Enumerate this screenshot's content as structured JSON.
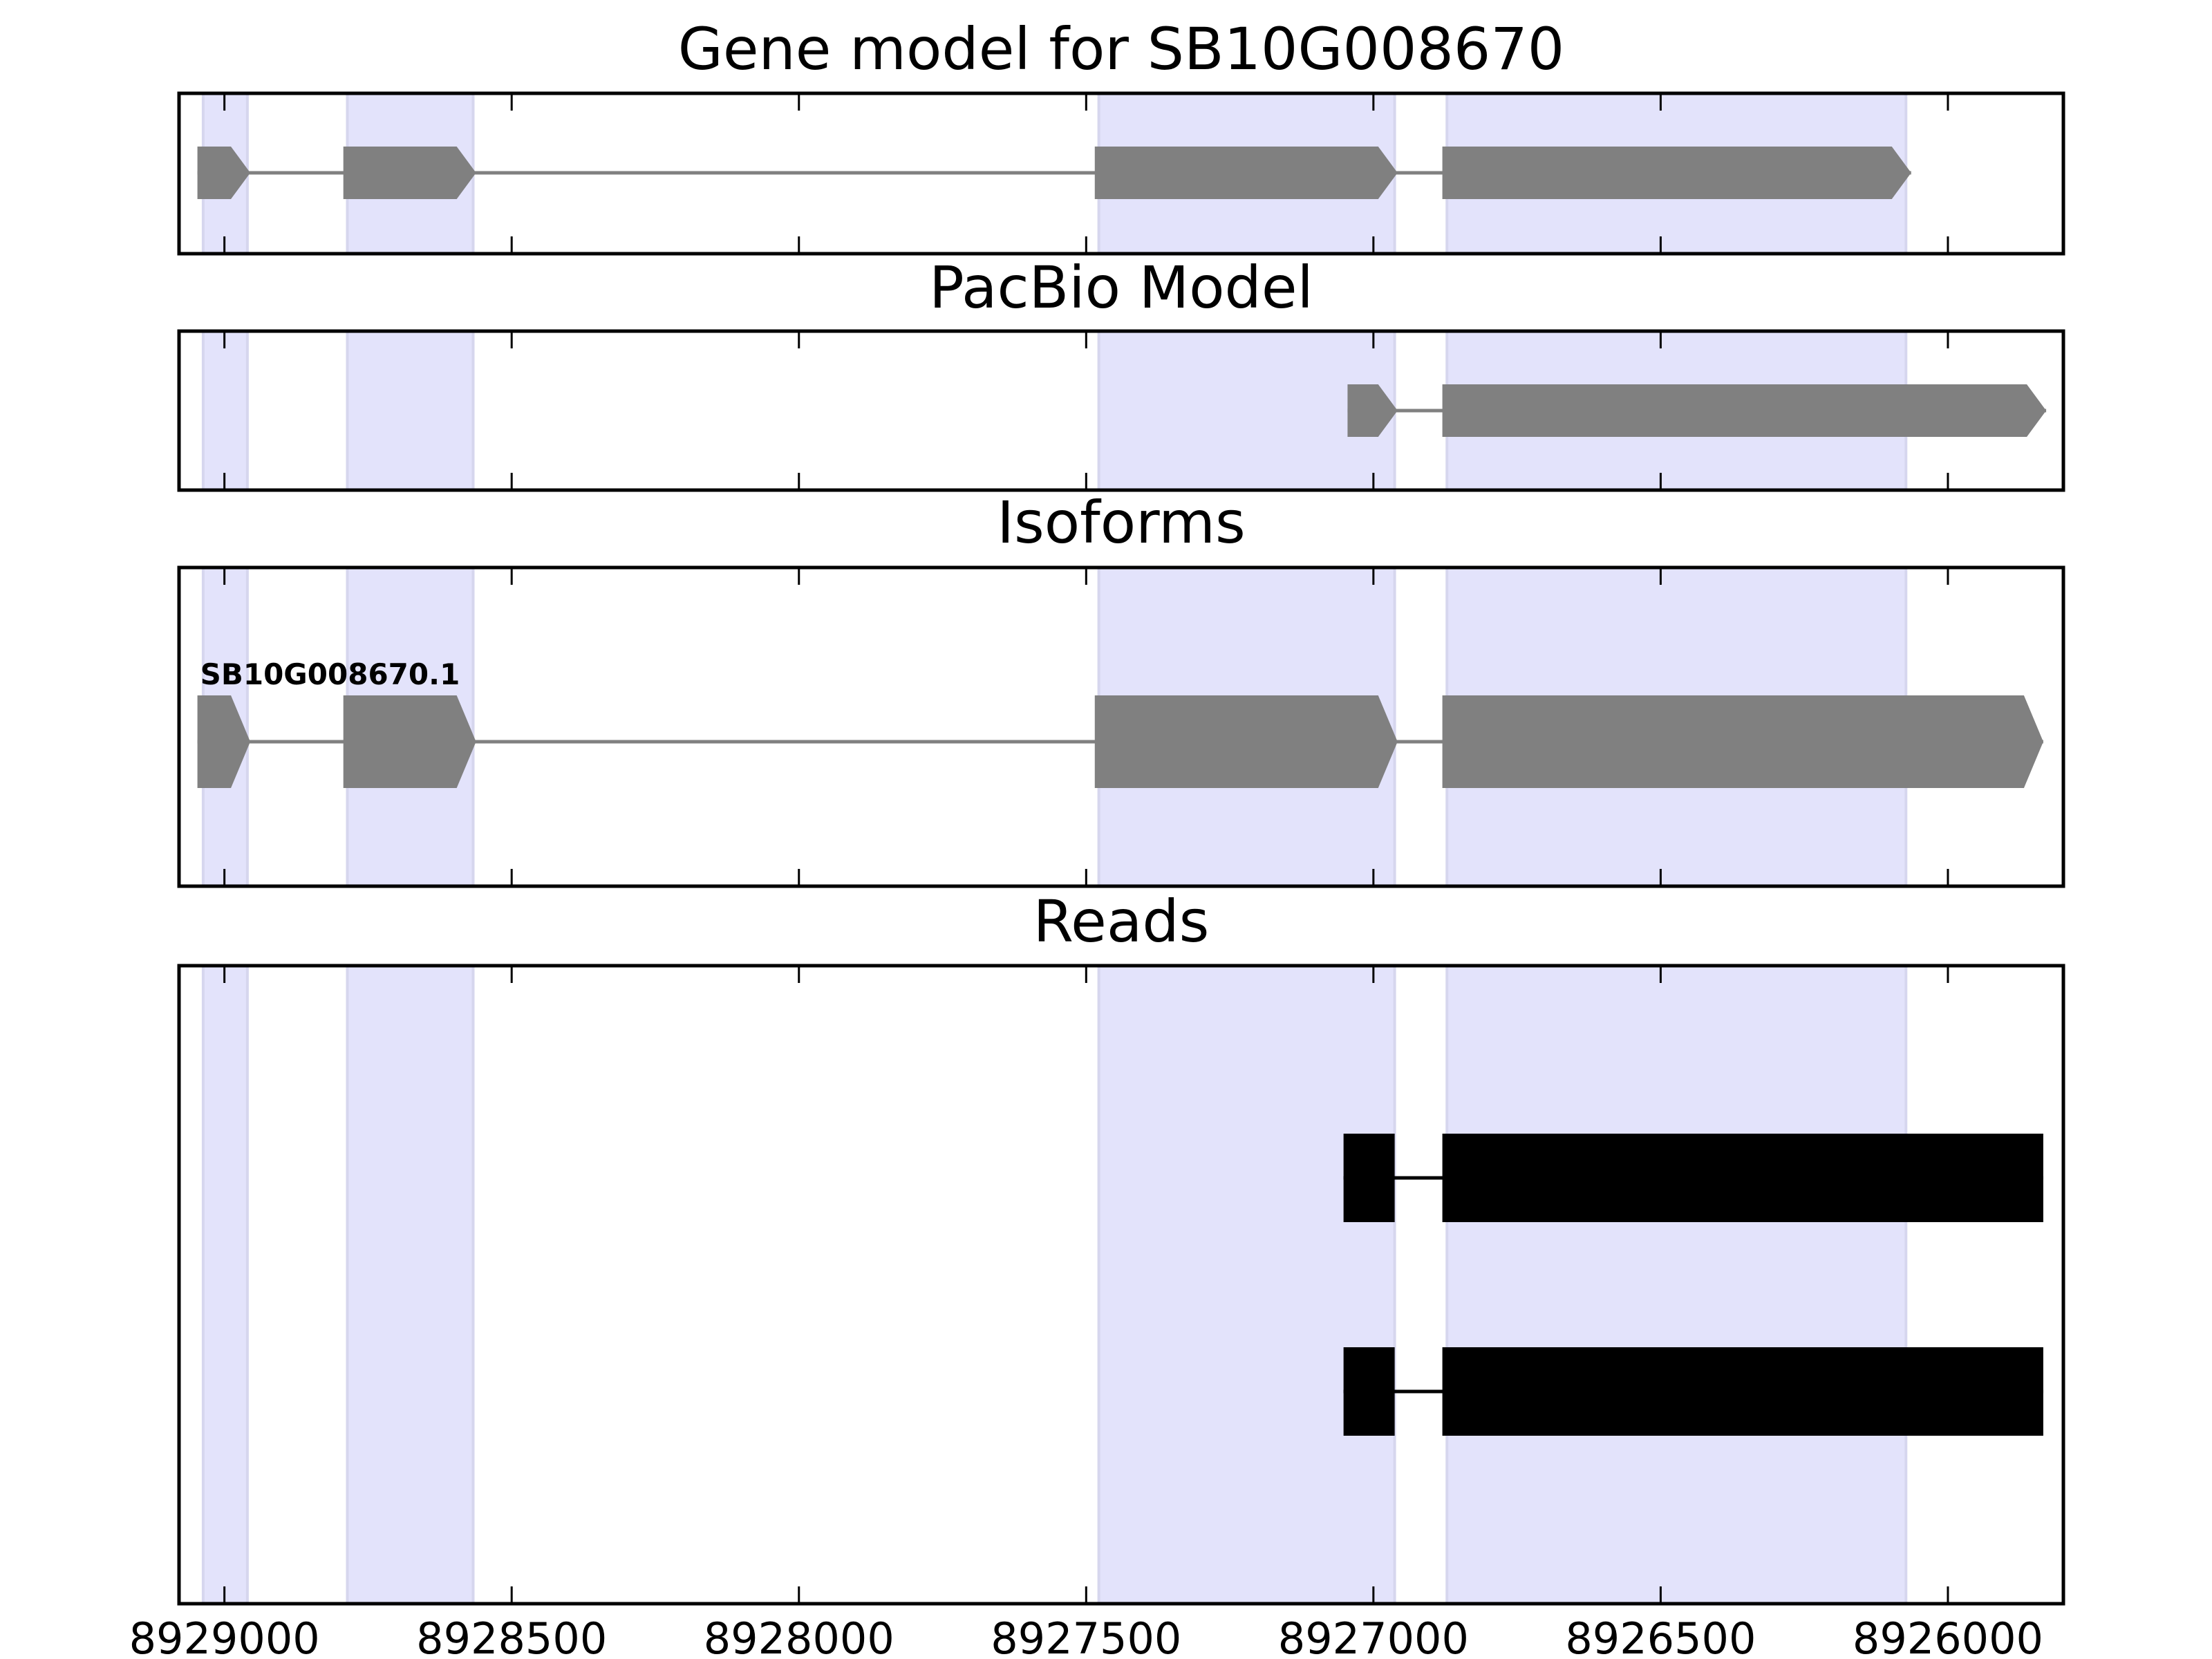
{
  "chart_data": {
    "type": "gene-track",
    "xlim": [
      8929079,
      8925799
    ],
    "x_ticks": [
      8929000,
      8928500,
      8928000,
      8927500,
      8927000,
      8926500,
      8926000
    ],
    "highlight_regions": [
      [
        8929037,
        8928960
      ],
      [
        8928786,
        8928567
      ],
      [
        8927478,
        8926963
      ],
      [
        8926872,
        8926073
      ]
    ],
    "colors": {
      "highlight": "#e3e3fb",
      "highlight_edge": "#d6d6ee",
      "model": "#808080",
      "reads": "#000000",
      "axis": "#000000"
    },
    "panels": [
      {
        "title": "Gene model for SB10G008670",
        "tracks": [
          {
            "label": null,
            "exons": [
              [
                8929047,
                8928955
              ],
              [
                8928793,
                8928562
              ],
              [
                8927485,
                8926958
              ],
              [
                8926880,
                8926064
              ]
            ]
          }
        ]
      },
      {
        "title": "PacBio Model",
        "tracks": [
          {
            "label": null,
            "exons": [
              [
                8927045,
                8926958
              ],
              [
                8926880,
                8925829
              ]
            ]
          }
        ]
      },
      {
        "title": "Isoforms",
        "tracks": [
          {
            "label": "SB10G008670.1",
            "exons": [
              [
                8929047,
                8928955
              ],
              [
                8928793,
                8928562
              ],
              [
                8927485,
                8926958
              ],
              [
                8926880,
                8925834
              ]
            ]
          }
        ]
      },
      {
        "title": "Reads",
        "tracks": [
          {
            "label": null,
            "exons": [
              [
                8927052,
                8926963
              ],
              [
                8926880,
                8925834
              ]
            ]
          },
          {
            "label": null,
            "exons": [
              [
                8927052,
                8926963
              ],
              [
                8926880,
                8925834
              ]
            ]
          }
        ]
      }
    ]
  }
}
